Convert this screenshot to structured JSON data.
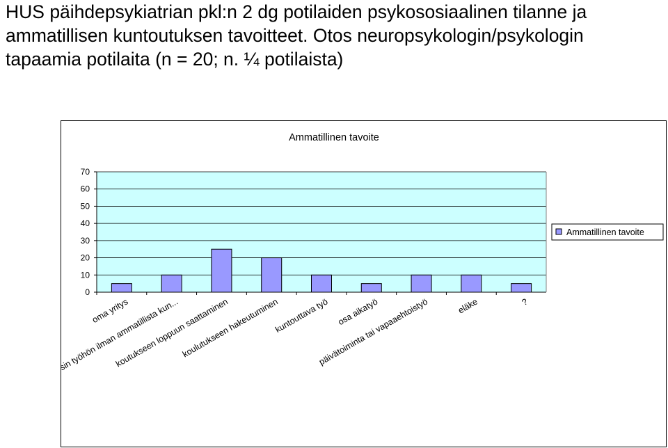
{
  "slide": {
    "title_lines": [
      "HUS päihdepsykiatrian pkl:n 2 dg potilaiden psykososiaalinen tilanne ja",
      "ammatillisen kuntoutuksen tavoitteet. Otos neuropsykologin/psykologin",
      "tapaamia potilaita (n = 20; n. ¼ potilaista)"
    ]
  },
  "colors": {
    "plot_background": "#ccffff",
    "bar_fill": "#9999ff",
    "bar_stroke": "#000000",
    "gridline": "#000000"
  },
  "chart_data": {
    "type": "bar",
    "title": "Ammatillinen tavoite",
    "xlabel": "",
    "ylabel": "",
    "ylim": [
      0,
      70
    ],
    "yticks": [
      0,
      10,
      20,
      30,
      40,
      50,
      60,
      70
    ],
    "grid": true,
    "legend_position": "right",
    "categories": [
      "oma yritys",
      "Takaisin työhön ilman ammatillista kun...",
      "koutukseen loppuun saattaminen",
      "koulutukseen hakeutuminen",
      "kuntouttava työ",
      "osa aikatyö",
      "päivätoiminta tai vapaaehtoistyö",
      "eläke",
      "?"
    ],
    "series": [
      {
        "name": "Ammatillinen tavoite",
        "values": [
          5,
          10,
          25,
          20,
          10,
          5,
          10,
          10,
          5
        ]
      }
    ]
  }
}
